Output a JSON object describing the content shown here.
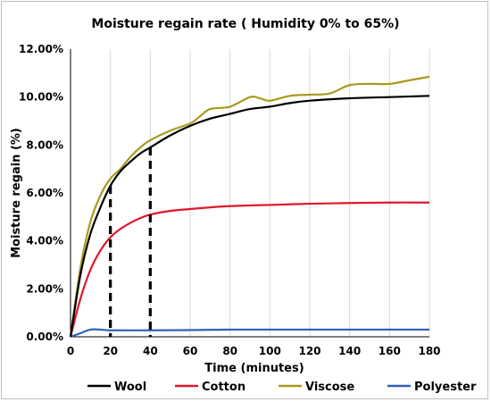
{
  "chart_data": {
    "type": "line",
    "title": "Moisture regain rate ( Humidity 0% to 65%)",
    "xlabel": "Time (minutes)",
    "ylabel": "Moisture regain (%)",
    "xlim": [
      0,
      180
    ],
    "ylim": [
      0,
      12
    ],
    "x_ticks": [
      "0",
      "20",
      "40",
      "60",
      "80",
      "100",
      "120",
      "140",
      "160",
      "180"
    ],
    "y_ticks": [
      "0.00%",
      "2.00%",
      "4.00%",
      "6.00%",
      "8.00%",
      "10.00%",
      "12.00%"
    ],
    "grid": "vertical",
    "legend_position": "bottom",
    "series": [
      {
        "name": "Wool",
        "color": "#000000",
        "points": [
          [
            0,
            0
          ],
          [
            5,
            2.6
          ],
          [
            10,
            4.3
          ],
          [
            15,
            5.4
          ],
          [
            20,
            6.3
          ],
          [
            25,
            6.9
          ],
          [
            30,
            7.3
          ],
          [
            35,
            7.65
          ],
          [
            40,
            7.9
          ],
          [
            50,
            8.4
          ],
          [
            60,
            8.8
          ],
          [
            70,
            9.1
          ],
          [
            80,
            9.3
          ],
          [
            90,
            9.5
          ],
          [
            100,
            9.6
          ],
          [
            110,
            9.75
          ],
          [
            120,
            9.85
          ],
          [
            140,
            9.95
          ],
          [
            160,
            10.0
          ],
          [
            180,
            10.05
          ]
        ]
      },
      {
        "name": "Cotton",
        "color": "#e0162b",
        "points": [
          [
            0,
            0
          ],
          [
            5,
            1.6
          ],
          [
            10,
            2.8
          ],
          [
            15,
            3.6
          ],
          [
            20,
            4.15
          ],
          [
            25,
            4.5
          ],
          [
            30,
            4.75
          ],
          [
            35,
            4.95
          ],
          [
            40,
            5.1
          ],
          [
            50,
            5.25
          ],
          [
            60,
            5.33
          ],
          [
            70,
            5.4
          ],
          [
            80,
            5.45
          ],
          [
            90,
            5.48
          ],
          [
            100,
            5.5
          ],
          [
            120,
            5.55
          ],
          [
            140,
            5.58
          ],
          [
            160,
            5.6
          ],
          [
            180,
            5.6
          ]
        ]
      },
      {
        "name": "Viscose",
        "color": "#a89a1e",
        "points": [
          [
            0,
            0
          ],
          [
            5,
            2.9
          ],
          [
            10,
            4.8
          ],
          [
            15,
            5.9
          ],
          [
            20,
            6.6
          ],
          [
            25,
            7.0
          ],
          [
            30,
            7.5
          ],
          [
            35,
            7.9
          ],
          [
            40,
            8.2
          ],
          [
            50,
            8.6
          ],
          [
            60,
            8.9
          ],
          [
            65,
            9.2
          ],
          [
            70,
            9.5
          ],
          [
            80,
            9.6
          ],
          [
            90,
            10.0
          ],
          [
            95,
            9.95
          ],
          [
            100,
            9.85
          ],
          [
            110,
            10.05
          ],
          [
            120,
            10.1
          ],
          [
            130,
            10.15
          ],
          [
            140,
            10.5
          ],
          [
            150,
            10.55
          ],
          [
            160,
            10.55
          ],
          [
            170,
            10.7
          ],
          [
            180,
            10.85
          ]
        ]
      },
      {
        "name": "Polyester",
        "color": "#2e62b4",
        "points": [
          [
            0,
            0
          ],
          [
            5,
            0.15
          ],
          [
            10,
            0.3
          ],
          [
            15,
            0.3
          ],
          [
            20,
            0.27
          ],
          [
            40,
            0.27
          ],
          [
            60,
            0.28
          ],
          [
            80,
            0.3
          ],
          [
            120,
            0.3
          ],
          [
            180,
            0.3
          ]
        ]
      }
    ],
    "reference_lines": [
      {
        "x": 20,
        "y": 6.3
      },
      {
        "x": 40,
        "y": 7.9
      }
    ]
  }
}
